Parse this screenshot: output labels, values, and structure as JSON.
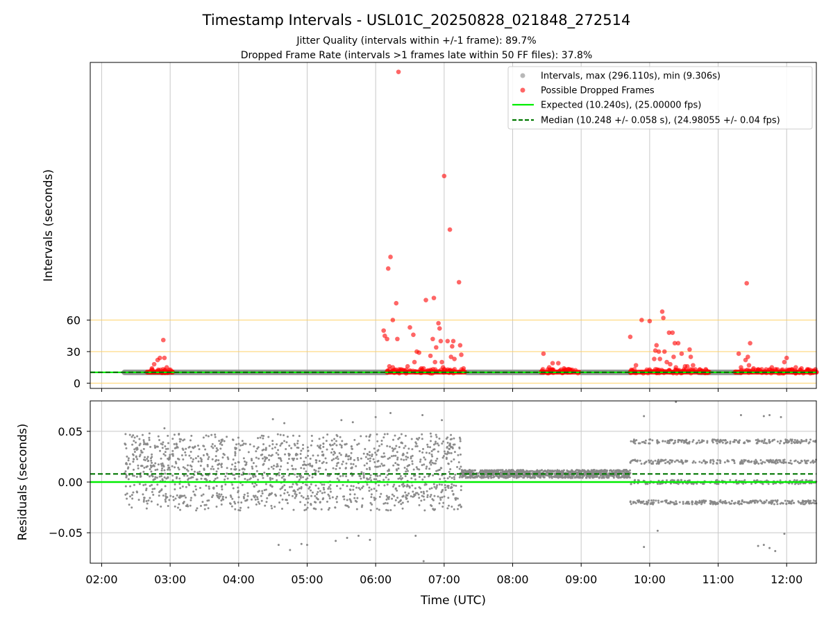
{
  "title": "Timestamp Intervals - USL01C_20250828_021848_272514",
  "subtitle_lines": [
    "Jitter Quality (intervals within +/-1 frame): 89.7%",
    "Dropped Frame Rate (intervals >1 frames late within 50 FF files): 37.8%"
  ],
  "xlabel": "Time (UTC)",
  "colors": {
    "intervals": "#888888",
    "dropped": "#ff0000",
    "expected": "#00ee00",
    "median": "#007700",
    "hline": "#ffd060",
    "grid": "#c8c8c8"
  },
  "chart_data": [
    {
      "type": "scatter",
      "name": "intervals",
      "ylabel": "Intervals (seconds)",
      "x_type": "time",
      "xlim": [
        "01:50",
        "12:26"
      ],
      "ylim": [
        -5,
        305
      ],
      "y_ticks": [
        0,
        30,
        60
      ],
      "x_ticks": [
        "02:00",
        "03:00",
        "04:00",
        "05:00",
        "06:00",
        "07:00",
        "08:00",
        "09:00",
        "10:00",
        "11:00",
        "12:00"
      ],
      "x_grid": true,
      "y_grid": false,
      "reference_lines": [
        0,
        30,
        60
      ],
      "legend_position": "upper right",
      "legend": [
        "Intervals, max (296.110s), min (9.306s)",
        "Possible Dropped Frames",
        "Expected (10.240s), (25.00000 fps)",
        "Median (10.248 +/- 0.058 s), (24.98055 +/- 0.04 fps)"
      ],
      "expected_value": 10.24,
      "median_value": 10.248,
      "normal_interval_segments": [
        {
          "start": "02:20",
          "end": "06:10",
          "y": 10.24
        },
        {
          "start": "07:20",
          "end": "08:27",
          "y": 10.24
        },
        {
          "start": "09:00",
          "end": "09:43",
          "y": 10.24
        },
        {
          "start": "10:43",
          "end": "11:20",
          "y": 10.24
        }
      ],
      "dropped_clusters": [
        {
          "start": "02:40",
          "end": "03:02",
          "y": 10.5
        },
        {
          "start": "06:10",
          "end": "06:35",
          "y": 10.5
        },
        {
          "start": "06:35",
          "end": "07:18",
          "y": 10.5
        },
        {
          "start": "08:25",
          "end": "08:58",
          "y": 10.5
        },
        {
          "start": "09:43",
          "end": "10:18",
          "y": 10.5
        },
        {
          "start": "10:18",
          "end": "10:52",
          "y": 10.5
        },
        {
          "start": "11:15",
          "end": "12:26",
          "y": 10.5
        }
      ],
      "dropped_points": [
        {
          "x": "02:49",
          "y": 22
        },
        {
          "x": "02:51",
          "y": 24
        },
        {
          "x": "02:46",
          "y": 18
        },
        {
          "x": "02:55",
          "y": 24
        },
        {
          "x": "02:54",
          "y": 41
        },
        {
          "x": "02:44",
          "y": 14
        },
        {
          "x": "02:50",
          "y": 12
        },
        {
          "x": "02:57",
          "y": 15
        },
        {
          "x": "06:07",
          "y": 50
        },
        {
          "x": "06:08",
          "y": 45
        },
        {
          "x": "06:10",
          "y": 42
        },
        {
          "x": "06:11",
          "y": 109
        },
        {
          "x": "06:13",
          "y": 120
        },
        {
          "x": "06:15",
          "y": 60
        },
        {
          "x": "06:18",
          "y": 76
        },
        {
          "x": "06:19",
          "y": 42
        },
        {
          "x": "06:20",
          "y": 296
        },
        {
          "x": "06:12",
          "y": 16
        },
        {
          "x": "06:15",
          "y": 15
        },
        {
          "x": "06:28",
          "y": 16
        },
        {
          "x": "06:30",
          "y": 53
        },
        {
          "x": "06:33",
          "y": 46
        },
        {
          "x": "06:34",
          "y": 20
        },
        {
          "x": "06:36",
          "y": 30
        },
        {
          "x": "06:38",
          "y": 29
        },
        {
          "x": "06:40",
          "y": 14
        },
        {
          "x": "06:42",
          "y": 14
        },
        {
          "x": "06:44",
          "y": 11
        },
        {
          "x": "06:44",
          "y": 79
        },
        {
          "x": "06:48",
          "y": 26
        },
        {
          "x": "06:50",
          "y": 42
        },
        {
          "x": "06:51",
          "y": 81
        },
        {
          "x": "06:52",
          "y": 20
        },
        {
          "x": "06:53",
          "y": 34
        },
        {
          "x": "06:55",
          "y": 57
        },
        {
          "x": "06:56",
          "y": 52
        },
        {
          "x": "06:57",
          "y": 40
        },
        {
          "x": "06:58",
          "y": 20
        },
        {
          "x": "06:59",
          "y": 15
        },
        {
          "x": "07:00",
          "y": 197
        },
        {
          "x": "07:03",
          "y": 40
        },
        {
          "x": "07:05",
          "y": 146
        },
        {
          "x": "07:06",
          "y": 25
        },
        {
          "x": "07:07",
          "y": 35
        },
        {
          "x": "07:08",
          "y": 40
        },
        {
          "x": "07:09",
          "y": 23
        },
        {
          "x": "07:13",
          "y": 96
        },
        {
          "x": "07:14",
          "y": 36
        },
        {
          "x": "07:15",
          "y": 27
        },
        {
          "x": "07:17",
          "y": 14
        },
        {
          "x": "08:27",
          "y": 28
        },
        {
          "x": "08:32",
          "y": 15
        },
        {
          "x": "08:35",
          "y": 19
        },
        {
          "x": "08:40",
          "y": 19
        },
        {
          "x": "08:45",
          "y": 14
        },
        {
          "x": "08:50",
          "y": 13
        },
        {
          "x": "09:43",
          "y": 44
        },
        {
          "x": "09:48",
          "y": 17
        },
        {
          "x": "09:53",
          "y": 60
        },
        {
          "x": "10:00",
          "y": 59
        },
        {
          "x": "10:04",
          "y": 23
        },
        {
          "x": "10:05",
          "y": 31
        },
        {
          "x": "10:06",
          "y": 36
        },
        {
          "x": "10:08",
          "y": 30
        },
        {
          "x": "10:09",
          "y": 23
        },
        {
          "x": "10:11",
          "y": 68
        },
        {
          "x": "10:12",
          "y": 62
        },
        {
          "x": "10:13",
          "y": 30
        },
        {
          "x": "10:15",
          "y": 20
        },
        {
          "x": "10:17",
          "y": 48
        },
        {
          "x": "10:18",
          "y": 18
        },
        {
          "x": "10:20",
          "y": 48
        },
        {
          "x": "10:21",
          "y": 25
        },
        {
          "x": "10:22",
          "y": 38
        },
        {
          "x": "10:23",
          "y": 15
        },
        {
          "x": "10:25",
          "y": 38
        },
        {
          "x": "10:28",
          "y": 28
        },
        {
          "x": "10:31",
          "y": 16
        },
        {
          "x": "10:33",
          "y": 16
        },
        {
          "x": "10:35",
          "y": 32
        },
        {
          "x": "10:36",
          "y": 25
        },
        {
          "x": "10:38",
          "y": 17
        },
        {
          "x": "10:40",
          "y": 13
        },
        {
          "x": "10:44",
          "y": 13
        },
        {
          "x": "11:18",
          "y": 28
        },
        {
          "x": "11:20",
          "y": 15
        },
        {
          "x": "11:24",
          "y": 22
        },
        {
          "x": "11:25",
          "y": 95
        },
        {
          "x": "11:26",
          "y": 25
        },
        {
          "x": "11:27",
          "y": 17
        },
        {
          "x": "11:28",
          "y": 38
        },
        {
          "x": "11:31",
          "y": 14
        },
        {
          "x": "11:35",
          "y": 13
        },
        {
          "x": "11:42",
          "y": 13
        },
        {
          "x": "11:47",
          "y": 15
        },
        {
          "x": "11:52",
          "y": 13
        },
        {
          "x": "11:58",
          "y": 20
        },
        {
          "x": "12:00",
          "y": 24
        },
        {
          "x": "12:08",
          "y": 15
        },
        {
          "x": "12:13",
          "y": 14
        }
      ]
    },
    {
      "type": "scatter",
      "name": "residuals",
      "ylabel": "Residuals (seconds)",
      "x_type": "time",
      "xlim": [
        "01:50",
        "12:26"
      ],
      "ylim": [
        -0.08,
        0.08
      ],
      "y_ticks": [
        0.05,
        0.0,
        -0.05
      ],
      "y_tick_labels": [
        "0.05",
        "0.00",
        "−0.05"
      ],
      "x_ticks": [
        "02:00",
        "03:00",
        "04:00",
        "05:00",
        "06:00",
        "07:00",
        "08:00",
        "09:00",
        "10:00",
        "11:00",
        "12:00"
      ],
      "x_grid": true,
      "y_grid": true,
      "expected_value": 0.0,
      "median_value": 0.008,
      "regimes": [
        {
          "start": "02:20",
          "end": "07:15",
          "levels": [
            -0.02,
            -0.01,
            0.0,
            0.01,
            0.02,
            0.03,
            0.04
          ],
          "spread": 0.008
        },
        {
          "start": "07:15",
          "end": "09:43",
          "levels": [
            0.008
          ],
          "spread": 0.004
        },
        {
          "start": "09:43",
          "end": "12:26",
          "levels": [
            -0.02,
            0.0,
            0.02,
            0.04
          ],
          "spread": 0.002
        }
      ],
      "outliers": [
        {
          "x": "02:55",
          "y": 0.053
        },
        {
          "x": "04:30",
          "y": 0.062
        },
        {
          "x": "04:40",
          "y": 0.058
        },
        {
          "x": "05:30",
          "y": 0.061
        },
        {
          "x": "05:40",
          "y": 0.059
        },
        {
          "x": "06:00",
          "y": 0.064
        },
        {
          "x": "06:13",
          "y": 0.068
        },
        {
          "x": "06:41",
          "y": 0.066
        },
        {
          "x": "06:58",
          "y": 0.061
        },
        {
          "x": "04:35",
          "y": -0.062
        },
        {
          "x": "04:45",
          "y": -0.067
        },
        {
          "x": "04:55",
          "y": -0.061
        },
        {
          "x": "05:00",
          "y": -0.062
        },
        {
          "x": "05:25",
          "y": -0.058
        },
        {
          "x": "05:35",
          "y": -0.055
        },
        {
          "x": "05:45",
          "y": -0.053
        },
        {
          "x": "05:55",
          "y": -0.057
        },
        {
          "x": "06:35",
          "y": -0.053
        },
        {
          "x": "06:42",
          "y": -0.078
        },
        {
          "x": "09:55",
          "y": 0.065
        },
        {
          "x": "10:23",
          "y": 0.079
        },
        {
          "x": "11:20",
          "y": 0.066
        },
        {
          "x": "11:40",
          "y": 0.065
        },
        {
          "x": "11:45",
          "y": 0.066
        },
        {
          "x": "11:55",
          "y": 0.064
        },
        {
          "x": "09:55",
          "y": -0.064
        },
        {
          "x": "10:07",
          "y": -0.048
        },
        {
          "x": "11:35",
          "y": -0.063
        },
        {
          "x": "11:40",
          "y": -0.062
        },
        {
          "x": "11:45",
          "y": -0.065
        },
        {
          "x": "11:50",
          "y": -0.068
        },
        {
          "x": "11:58",
          "y": -0.051
        }
      ]
    }
  ]
}
